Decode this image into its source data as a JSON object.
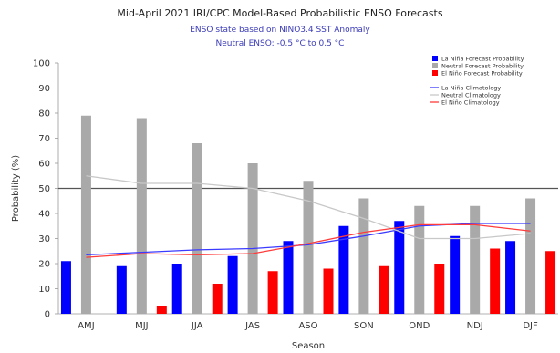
{
  "chart_data": {
    "type": "bar",
    "title": "Mid-April 2021 IRI/CPC Model-Based Probabilistic ENSO Forecasts",
    "subtitle_lines": [
      "ENSO state based on NINO3.4 SST Anomaly",
      "Neutral ENSO: -0.5 °C to 0.5 °C"
    ],
    "xlabel": "Season",
    "ylabel": "Probability (%)",
    "ylim": [
      0,
      100
    ],
    "yticks": [
      0,
      10,
      20,
      30,
      40,
      50,
      60,
      70,
      80,
      90,
      100
    ],
    "categories": [
      "AMJ",
      "MJJ",
      "JJA",
      "JAS",
      "ASO",
      "SON",
      "OND",
      "NDJ",
      "DJF"
    ],
    "grid": false,
    "reference_line": 50,
    "legend_position": "top-right",
    "series": [
      {
        "name": "La Niña Forecast Probability",
        "kind": "bar",
        "color": "#0000ff",
        "values": [
          21,
          19,
          20,
          23,
          29,
          35,
          37,
          31,
          29
        ]
      },
      {
        "name": "Neutral Forecast Probability",
        "kind": "bar",
        "color": "#a9a9a9",
        "values": [
          79,
          78,
          68,
          60,
          53,
          46,
          43,
          43,
          46
        ]
      },
      {
        "name": "El Niño Forecast Probability",
        "kind": "bar",
        "color": "#ff0000",
        "values": [
          null,
          3,
          12,
          17,
          18,
          19,
          20,
          26,
          25
        ]
      },
      {
        "name": "La Niña Climatology",
        "kind": "line",
        "color": "#3b3bff",
        "values": [
          23.5,
          24.5,
          25.5,
          26,
          27.5,
          31,
          35,
          36,
          36
        ]
      },
      {
        "name": "Neutral Climatology",
        "kind": "line",
        "color": "#c8c8c8",
        "values": [
          55,
          52,
          52,
          50,
          45,
          38,
          30,
          30,
          32
        ]
      },
      {
        "name": "El Niño Climatology",
        "kind": "line",
        "color": "#ff3b3b",
        "values": [
          22.5,
          24,
          23.5,
          24,
          28,
          32.5,
          35.5,
          35.5,
          33
        ]
      }
    ]
  }
}
